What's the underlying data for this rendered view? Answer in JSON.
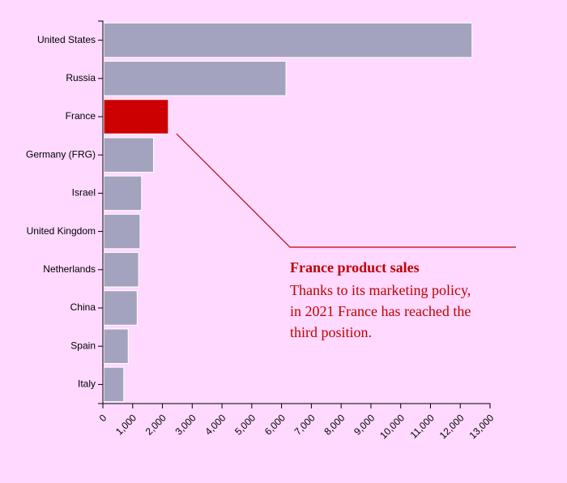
{
  "chart_data": {
    "type": "bar",
    "orientation": "horizontal",
    "categories": [
      "United States",
      "Russia",
      "France",
      "Germany (FRG)",
      "Israel",
      "United Kingdom",
      "Netherlands",
      "China",
      "Spain",
      "Italy"
    ],
    "values": [
      12394,
      6148,
      2200,
      1700,
      1300,
      1250,
      1200,
      1150,
      850,
      700
    ],
    "highlight": "France",
    "colors": {
      "bar": "#a3a3bf",
      "highlight": "#cc0000",
      "annotation": "#c00000",
      "background": "#ffd9ff"
    },
    "xlim": [
      0,
      13000
    ],
    "xticks": [
      "0",
      "1,000",
      "2,000",
      "3,000",
      "4,000",
      "5,000",
      "6,000",
      "7,000",
      "8,000",
      "9,000",
      "10,000",
      "11,000",
      "12,000",
      "13,000"
    ],
    "annotation": {
      "title": "France product sales",
      "lines": [
        "Thanks to its marketing policy,",
        "in 2021 France has reached the",
        "third position."
      ]
    }
  }
}
